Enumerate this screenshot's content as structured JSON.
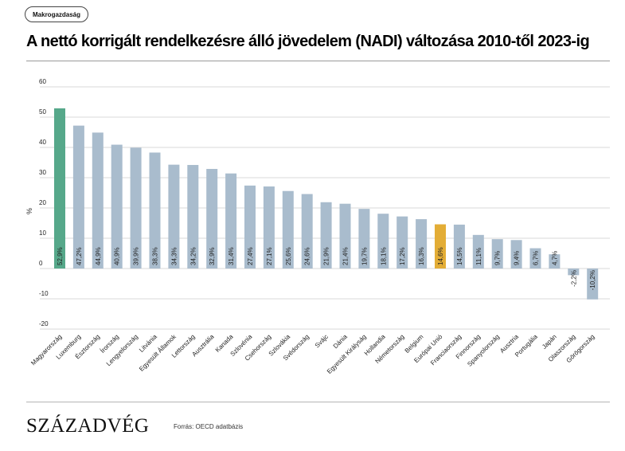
{
  "header": {
    "tag": "Makrogazdaság",
    "title": "A nettó korrigált rendelkezésre álló jövedelem (NADI) változása 2010-től 2023-ig"
  },
  "footer": {
    "brand": "SZÁZADVÉG",
    "source": "Forrás: OECD adatbázis"
  },
  "colors": {
    "default_bar": "#a9bccd",
    "highlight_hu": "#56a88a",
    "highlight_eu": "#e3ad36",
    "grid": "#d9d9d9",
    "label_text": "#333333"
  },
  "chart_data": {
    "type": "bar",
    "title": "A nettó korrigált rendelkezésre álló jövedelem (NADI) változása 2010-től 2023-ig",
    "ylabel": "%",
    "xlabel": "",
    "ylim": [
      -20,
      60
    ],
    "yticks": [
      60,
      50,
      40,
      30,
      20,
      10,
      0,
      -10,
      -20
    ],
    "grid": true,
    "categories": [
      "Magyarország",
      "Luxemburg",
      "Észtország",
      "Írország",
      "Lengyelország",
      "Litvánia",
      "Egyesült Államok",
      "Lettország",
      "Ausztrália",
      "Kanada",
      "Szlovénia",
      "Csehország",
      "Szlovákia",
      "Svédország",
      "Svájc",
      "Dánia",
      "Egyesült Királyság",
      "Hollandia",
      "Németország",
      "Belgium",
      "Európai Unió",
      "Franciaország",
      "Finnország",
      "Spanyolország",
      "Ausztria",
      "Portugália",
      "Japán",
      "Olaszország",
      "Görögország"
    ],
    "values": [
      52.9,
      47.2,
      44.9,
      40.9,
      39.9,
      38.3,
      34.3,
      34.2,
      32.9,
      31.4,
      27.4,
      27.1,
      25.6,
      24.6,
      21.9,
      21.4,
      19.7,
      18.1,
      17.2,
      16.3,
      14.6,
      14.5,
      11.1,
      9.7,
      9.4,
      6.7,
      4.7,
      -2.2,
      -10.2
    ],
    "value_labels": [
      "52,9%",
      "47,2%",
      "44,9%",
      "40,9%",
      "39,9%",
      "38,3%",
      "34,3%",
      "34,2%",
      "32,9%",
      "31,4%",
      "27,4%",
      "27,1%",
      "25,6%",
      "24,6%",
      "21,9%",
      "21,4%",
      "19,7%",
      "18,1%",
      "17,2%",
      "16,3%",
      "14,6%",
      "14,5%",
      "11,1%",
      "9,7%",
      "9,4%",
      "6,7%",
      "4,7%",
      "-2,2%",
      "-10,2%"
    ],
    "highlights": {
      "Magyarország": "#56a88a",
      "Európai Unió": "#e3ad36"
    }
  }
}
